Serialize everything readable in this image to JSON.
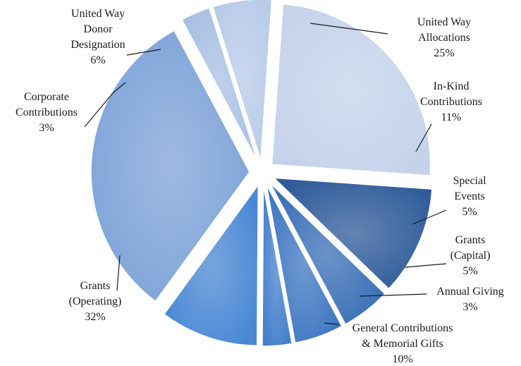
{
  "chart_data": {
    "type": "pie",
    "slices": [
      {
        "name": "United Way Allocations",
        "value": 25,
        "label_lines": [
          "United Way",
          "Allocations",
          "25%"
        ],
        "color": "#c5d3ea"
      },
      {
        "name": "In-Kind Contributions",
        "value": 11,
        "label_lines": [
          "In-Kind",
          "Contributions",
          "11%"
        ],
        "color": "#2f5b9a"
      },
      {
        "name": "Special Events",
        "value": 5,
        "label_lines": [
          "Special",
          "Events",
          "5%"
        ],
        "color": "#3a6fb6"
      },
      {
        "name": "Grants (Capital)",
        "value": 5,
        "label_lines": [
          "Grants",
          "(Capital)",
          "5%"
        ],
        "color": "#3f77c2"
      },
      {
        "name": "Annual Giving",
        "value": 3,
        "label_lines": [
          "Annual Giving",
          "3%"
        ],
        "color": "#4580cc"
      },
      {
        "name": "General Contributions & Memorial Gifts",
        "value": 10,
        "label_lines": [
          "General Contributions",
          "& Memorial Gifts",
          "10%"
        ],
        "color": "#4a88d4"
      },
      {
        "name": "Grants (Operating)",
        "value": 32,
        "label_lines": [
          "Grants",
          "(Operating)",
          "32%"
        ],
        "color": "#7ea3d8"
      },
      {
        "name": "Corporate Contributions",
        "value": 3,
        "label_lines": [
          "Corporate",
          "Contributions",
          "3%"
        ],
        "color": "#a9c0e3"
      },
      {
        "name": "United Way Donor Designation",
        "value": 6,
        "label_lines": [
          "United Way",
          "Donor",
          "Designation",
          "6%"
        ],
        "color": "#b8cbe8"
      }
    ]
  }
}
